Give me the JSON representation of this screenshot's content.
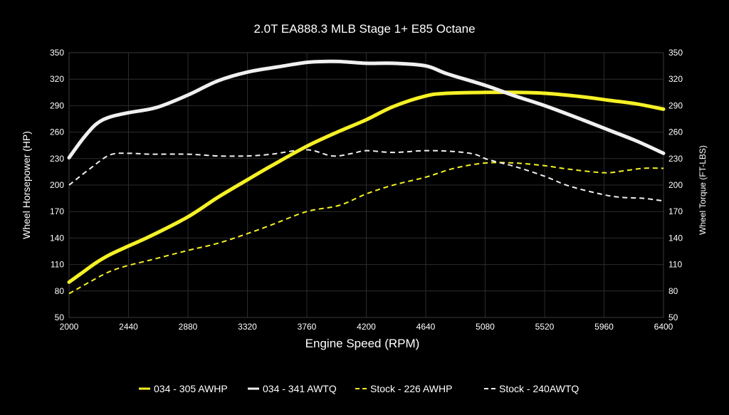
{
  "chart_data": {
    "type": "line",
    "title": "2.0T EA888.3 MLB Stage 1+ E85 Octane",
    "xlabel": "Engine Speed (RPM)",
    "ylabel_left": "Wheel Horsepower (HP)",
    "ylabel_right": "Wheel Torque (FT-LBS)",
    "xlim": [
      2000,
      6400
    ],
    "ylim": [
      50,
      350
    ],
    "x_ticks": [
      2000,
      2440,
      2880,
      3320,
      3760,
      4200,
      4640,
      5080,
      5520,
      5960,
      6400
    ],
    "y_ticks": [
      50,
      80,
      110,
      140,
      170,
      200,
      230,
      260,
      290,
      320,
      350
    ],
    "grid": true,
    "legend_position": "bottom",
    "series": [
      {
        "name": "034 - 305 AWHP",
        "color": "#f5f125",
        "style": "solid",
        "x": [
          2000,
          2100,
          2200,
          2300,
          2440,
          2600,
          2880,
          3100,
          3320,
          3500,
          3760,
          4000,
          4200,
          4400,
          4640,
          4800,
          5080,
          5300,
          5520,
          5800,
          6000,
          6200,
          6400
        ],
        "values": [
          90,
          101,
          112,
          121,
          131,
          142,
          164,
          186,
          206,
          222,
          244,
          261,
          274,
          289,
          301,
          304,
          305,
          305,
          304,
          300,
          296,
          292,
          286
        ]
      },
      {
        "name": "034 - 341 AWTQ",
        "color": "#f0f0f0",
        "style": "solid",
        "x": [
          2000,
          2100,
          2200,
          2300,
          2440,
          2650,
          2880,
          3100,
          3320,
          3550,
          3760,
          3900,
          4000,
          4200,
          4400,
          4640,
          4800,
          5080,
          5300,
          5520,
          5800,
          6000,
          6200,
          6400
        ],
        "values": [
          231,
          252,
          269,
          277,
          282,
          288,
          302,
          318,
          328,
          334,
          339,
          340,
          340,
          338,
          338,
          335,
          326,
          313,
          301,
          290,
          274,
          262,
          250,
          236
        ]
      },
      {
        "name": "Stock - 226 AWHP",
        "color": "#f5f125",
        "style": "dashed",
        "x": [
          2000,
          2150,
          2300,
          2440,
          2600,
          2880,
          3100,
          3320,
          3500,
          3760,
          4000,
          4200,
          4400,
          4640,
          4850,
          5080,
          5300,
          5520,
          5700,
          5960,
          6100,
          6250,
          6400
        ],
        "values": [
          77,
          90,
          102,
          109,
          115,
          126,
          134,
          145,
          155,
          170,
          177,
          190,
          200,
          209,
          219,
          225,
          225,
          222,
          218,
          214,
          216,
          219,
          219
        ]
      },
      {
        "name": "Stock - 240AWTQ",
        "color": "#f0f0f0",
        "style": "dashed",
        "x": [
          2000,
          2150,
          2300,
          2440,
          2600,
          2880,
          3100,
          3320,
          3500,
          3760,
          3950,
          4100,
          4200,
          4400,
          4640,
          4850,
          5000,
          5100,
          5300,
          5520,
          5700,
          5960,
          6100,
          6250,
          6400
        ],
        "values": [
          200,
          218,
          234,
          236,
          235,
          235,
          233,
          233,
          235,
          240,
          233,
          236,
          239,
          237,
          239,
          238,
          235,
          229,
          221,
          210,
          199,
          189,
          186,
          185,
          182
        ]
      }
    ]
  }
}
